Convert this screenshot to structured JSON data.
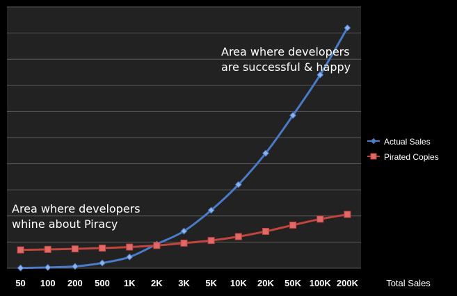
{
  "chart_data": {
    "type": "line",
    "title": "",
    "xlabel": "Total Sales",
    "ylabel": "",
    "categories": [
      "50",
      "100",
      "200",
      "500",
      "1K",
      "2K",
      "3K",
      "5K",
      "10K",
      "20K",
      "50K",
      "100K",
      "200K"
    ],
    "series": [
      {
        "name": "Actual Sales",
        "color": "#4a7bc8",
        "marker": "diamond",
        "values": [
          0.1,
          0.3,
          0.7,
          2.0,
          4.3,
          9.2,
          14.2,
          22.2,
          32.0,
          44.0,
          58.5,
          74.0,
          92.0
        ]
      },
      {
        "name": "Pirated Copies",
        "color": "#c0453f",
        "marker": "square",
        "values": [
          7.0,
          7.2,
          7.4,
          7.7,
          8.1,
          8.7,
          9.6,
          10.6,
          12.1,
          14.1,
          16.5,
          18.8,
          20.6
        ]
      }
    ],
    "ylim": [
      0,
      100
    ],
    "grid": true,
    "legend_position": "right",
    "annotations": [
      {
        "line1": "Area where developers",
        "line2": "are successful & happy"
      },
      {
        "line1": "Area where developers",
        "line2": "whine about Piracy"
      }
    ],
    "colors": {
      "background": "#000000",
      "plot_background": "#222222",
      "gridline": "#5a5a5a"
    }
  }
}
